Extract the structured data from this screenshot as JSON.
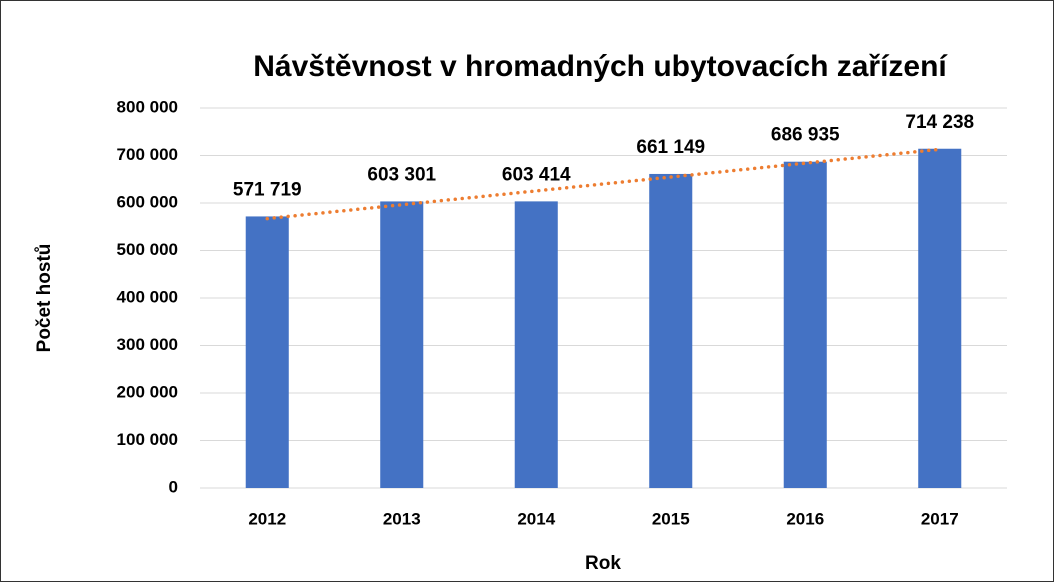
{
  "chart_data": {
    "type": "bar",
    "title": "Návštěvnost v hromadných ubytovacích zařízení",
    "x_label": "Rok",
    "y_label": "Počet hostů",
    "categories": [
      "2012",
      "2013",
      "2014",
      "2015",
      "2016",
      "2017"
    ],
    "values": [
      571719,
      603301,
      603414,
      661149,
      686935,
      714238
    ],
    "value_labels": [
      "571 719",
      "603 301",
      "603 414",
      "661 149",
      "686 935",
      "714 238"
    ],
    "color": "#4472c4",
    "ylim": [
      0,
      800000
    ],
    "yticks": [
      0,
      {
        "value": 100000,
        "label": "100 000"
      },
      {
        "value": 200000,
        "label": "200 000"
      },
      {
        "value": 300000,
        "label": "300 000"
      },
      {
        "value": 400000,
        "label": "400 000"
      },
      {
        "value": 500000,
        "label": "500 000"
      },
      {
        "value": 600000,
        "label": "600 000"
      },
      {
        "value": 700000,
        "label": "700 000"
      },
      {
        "value": 800000,
        "label": "800 000"
      }
    ],
    "grid": true,
    "trendline": {
      "type": "linear",
      "color": "#ed7d31"
    }
  }
}
